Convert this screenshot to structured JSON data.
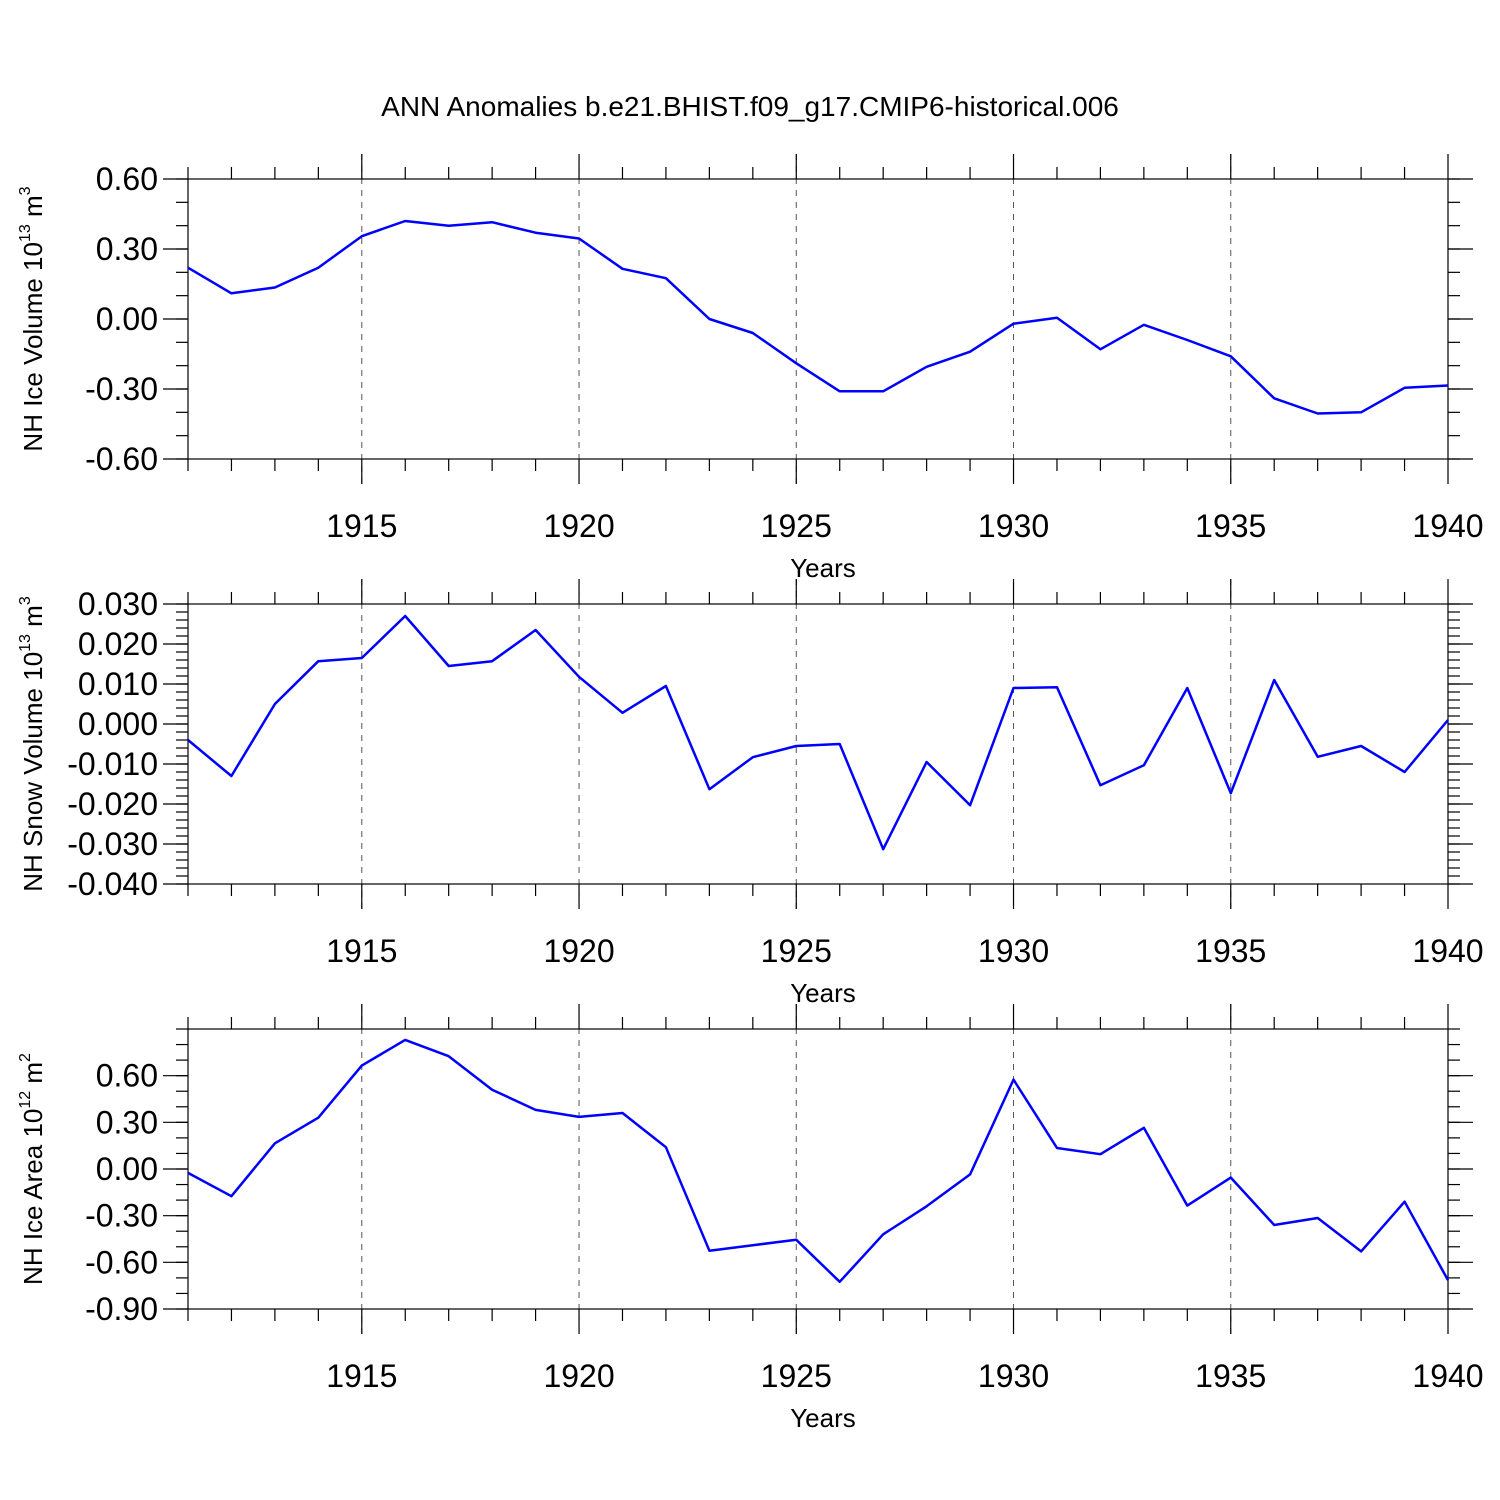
{
  "chart_data": [
    {
      "type": "line",
      "title": "ANN Anomalies b.e21.BHIST.f09_g17.CMIP6-historical.006",
      "xlabel": "Years",
      "ylabel": {
        "text": "NH Ice Volume 10",
        "exp": "13",
        "unit": " m",
        "unit_exp": "3"
      },
      "x": [
        1911,
        1912,
        1913,
        1914,
        1915,
        1916,
        1917,
        1918,
        1919,
        1920,
        1921,
        1922,
        1923,
        1924,
        1925,
        1926,
        1927,
        1928,
        1929,
        1930,
        1931,
        1932,
        1933,
        1934,
        1935,
        1936,
        1937,
        1938,
        1939,
        1940
      ],
      "xlim": [
        1911,
        1940
      ],
      "xticks": [
        1915,
        1920,
        1925,
        1930,
        1935,
        1940
      ],
      "xtick_labels": [
        "1915",
        "1920",
        "1925",
        "1930",
        "1935",
        "1940"
      ],
      "ylim": [
        -0.6,
        0.6
      ],
      "yticks": [
        -0.6,
        -0.3,
        0.0,
        0.3,
        0.6
      ],
      "ytick_labels": [
        "-0.60",
        "-0.30",
        "0.00",
        "0.30",
        "0.60"
      ],
      "yminor_step": 0.1,
      "series": [
        {
          "name": "NH Ice Volume",
          "color": "#0000ff",
          "values": [
            0.22,
            0.11,
            0.135,
            0.22,
            0.355,
            0.42,
            0.4,
            0.415,
            0.37,
            0.345,
            0.215,
            0.175,
            0.0,
            -0.06,
            -0.19,
            -0.31,
            -0.31,
            -0.205,
            -0.14,
            -0.02,
            0.005,
            -0.13,
            -0.025,
            -0.09,
            -0.16,
            -0.34,
            -0.405,
            -0.4,
            -0.295,
            -0.285
          ]
        }
      ]
    },
    {
      "type": "line",
      "title": "",
      "xlabel": "Years",
      "ylabel": {
        "text": "NH Snow Volume 10",
        "exp": "13",
        "unit": " m",
        "unit_exp": "3"
      },
      "x": [
        1911,
        1912,
        1913,
        1914,
        1915,
        1916,
        1917,
        1918,
        1919,
        1920,
        1921,
        1922,
        1923,
        1924,
        1925,
        1926,
        1927,
        1928,
        1929,
        1930,
        1931,
        1932,
        1933,
        1934,
        1935,
        1936,
        1937,
        1938,
        1939,
        1940
      ],
      "xlim": [
        1911,
        1940
      ],
      "xticks": [
        1915,
        1920,
        1925,
        1930,
        1935,
        1940
      ],
      "xtick_labels": [
        "1915",
        "1920",
        "1925",
        "1930",
        "1935",
        "1940"
      ],
      "ylim": [
        -0.04,
        0.03
      ],
      "yticks": [
        -0.04,
        -0.03,
        -0.02,
        -0.01,
        0.0,
        0.01,
        0.02,
        0.03
      ],
      "ytick_labels": [
        "-0.040",
        "-0.030",
        "-0.020",
        "-0.010",
        "0.000",
        "0.010",
        "0.020",
        "0.030"
      ],
      "yminor_step": 0.002,
      "series": [
        {
          "name": "NH Snow Volume",
          "color": "#0000ff",
          "values": [
            -0.004,
            -0.013,
            0.005,
            0.0157,
            0.0165,
            0.027,
            0.0145,
            0.0157,
            0.0235,
            0.0118,
            0.0028,
            0.0095,
            -0.0163,
            -0.0083,
            -0.0055,
            -0.005,
            -0.0313,
            -0.0095,
            -0.0203,
            0.009,
            0.0092,
            -0.0153,
            -0.0103,
            0.009,
            -0.0173,
            0.011,
            -0.0082,
            -0.0055,
            -0.012,
            0.001
          ]
        }
      ]
    },
    {
      "type": "line",
      "title": "",
      "xlabel": "Years",
      "ylabel": {
        "text": "NH Ice Area 10",
        "exp": "12",
        "unit": " m",
        "unit_exp": "2"
      },
      "x": [
        1911,
        1912,
        1913,
        1914,
        1915,
        1916,
        1917,
        1918,
        1919,
        1920,
        1921,
        1922,
        1923,
        1924,
        1925,
        1926,
        1927,
        1928,
        1929,
        1930,
        1931,
        1932,
        1933,
        1934,
        1935,
        1936,
        1937,
        1938,
        1939,
        1940
      ],
      "xlim": [
        1911,
        1940
      ],
      "xticks": [
        1915,
        1920,
        1925,
        1930,
        1935,
        1940
      ],
      "xtick_labels": [
        "1915",
        "1920",
        "1925",
        "1930",
        "1935",
        "1940"
      ],
      "ylim": [
        -0.9,
        0.9
      ],
      "yticks": [
        -0.9,
        -0.6,
        -0.3,
        0.0,
        0.3,
        0.6
      ],
      "ytick_labels": [
        "-0.90",
        "-0.60",
        "-0.30",
        "0.00",
        "0.30",
        "0.60"
      ],
      "yminor_step": 0.1,
      "series": [
        {
          "name": "NH Ice Area",
          "color": "#0000ff",
          "values": [
            -0.025,
            -0.175,
            0.165,
            0.33,
            0.665,
            0.83,
            0.725,
            0.51,
            0.38,
            0.335,
            0.36,
            0.14,
            -0.525,
            -0.49,
            -0.455,
            -0.725,
            -0.42,
            -0.24,
            -0.035,
            0.575,
            0.135,
            0.095,
            0.265,
            -0.235,
            -0.055,
            -0.36,
            -0.315,
            -0.53,
            -0.21,
            -0.715
          ]
        }
      ]
    }
  ]
}
